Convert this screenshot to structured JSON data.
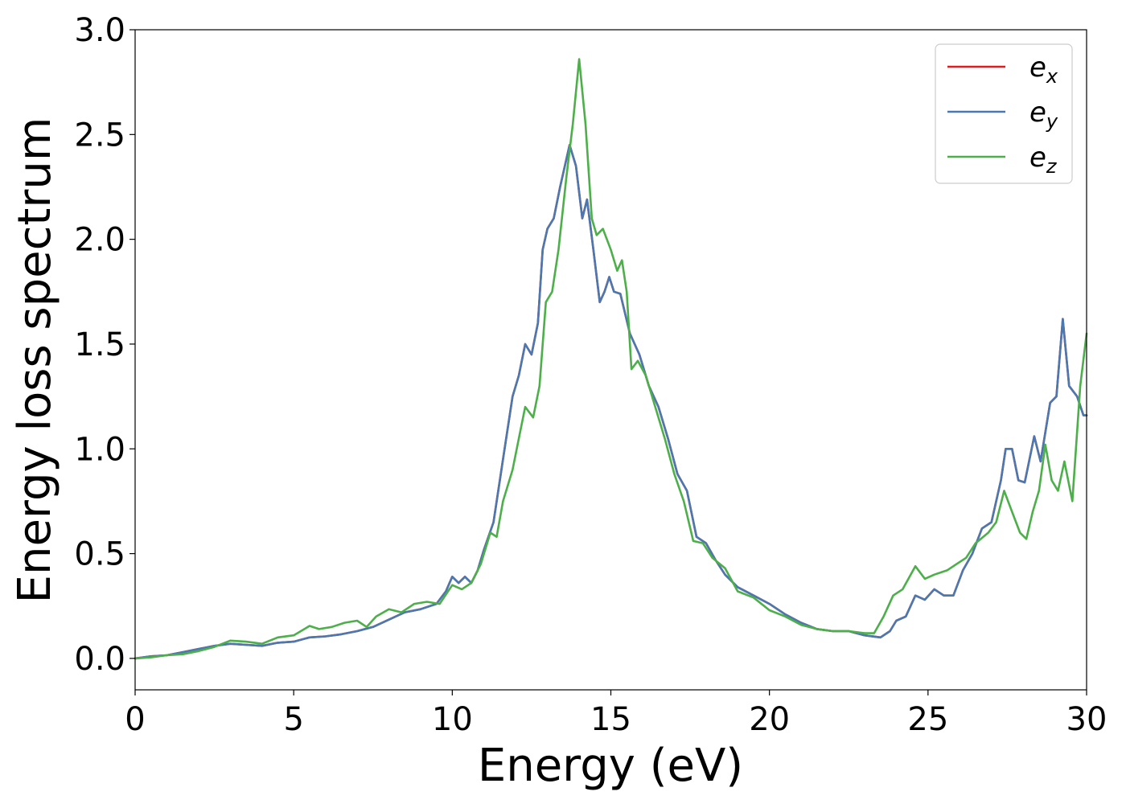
{
  "chart_data": {
    "type": "line",
    "title": "",
    "xlabel": "Energy (eV)",
    "ylabel": "Energy loss spectrum",
    "xlim": [
      0,
      30
    ],
    "ylim": [
      -0.15,
      3.0
    ],
    "xticks": [
      0,
      5,
      10,
      15,
      20,
      25,
      30
    ],
    "xtick_labels": [
      "0",
      "5",
      "10",
      "15",
      "20",
      "25",
      "30"
    ],
    "yticks": [
      0.0,
      0.5,
      1.0,
      1.5,
      2.0,
      2.5,
      3.0
    ],
    "ytick_labels": [
      "0.0",
      "0.5",
      "1.0",
      "1.5",
      "2.0",
      "2.5",
      "3.0"
    ],
    "grid": false,
    "legend_position": "top-right",
    "series": [
      {
        "name": "e_x",
        "legend_base": "e",
        "legend_sub": "x",
        "color": "#e41a1c",
        "points": [
          [
            0,
            0.0
          ],
          [
            0.5,
            0.01
          ],
          [
            1,
            0.015
          ],
          [
            1.5,
            0.03
          ],
          [
            2,
            0.045
          ],
          [
            2.5,
            0.06
          ],
          [
            3,
            0.07
          ],
          [
            3.5,
            0.065
          ],
          [
            4,
            0.06
          ],
          [
            4.5,
            0.075
          ],
          [
            5,
            0.08
          ],
          [
            5.5,
            0.1
          ],
          [
            6,
            0.105
          ],
          [
            6.5,
            0.115
          ],
          [
            7,
            0.13
          ],
          [
            7.5,
            0.15
          ],
          [
            8,
            0.185
          ],
          [
            8.5,
            0.22
          ],
          [
            9,
            0.235
          ],
          [
            9.5,
            0.26
          ],
          [
            9.8,
            0.32
          ],
          [
            10,
            0.39
          ],
          [
            10.2,
            0.36
          ],
          [
            10.4,
            0.39
          ],
          [
            10.6,
            0.36
          ],
          [
            10.8,
            0.42
          ],
          [
            11,
            0.52
          ],
          [
            11.3,
            0.65
          ],
          [
            11.6,
            0.95
          ],
          [
            11.9,
            1.25
          ],
          [
            12.1,
            1.35
          ],
          [
            12.3,
            1.5
          ],
          [
            12.5,
            1.45
          ],
          [
            12.7,
            1.6
          ],
          [
            12.85,
            1.95
          ],
          [
            13,
            2.05
          ],
          [
            13.2,
            2.1
          ],
          [
            13.4,
            2.25
          ],
          [
            13.7,
            2.45
          ],
          [
            13.9,
            2.35
          ],
          [
            14.1,
            2.1
          ],
          [
            14.25,
            2.19
          ],
          [
            14.45,
            1.95
          ],
          [
            14.65,
            1.7
          ],
          [
            14.8,
            1.75
          ],
          [
            14.95,
            1.82
          ],
          [
            15.1,
            1.75
          ],
          [
            15.3,
            1.74
          ],
          [
            15.6,
            1.55
          ],
          [
            15.9,
            1.45
          ],
          [
            16.2,
            1.3
          ],
          [
            16.5,
            1.2
          ],
          [
            16.8,
            1.05
          ],
          [
            17.1,
            0.88
          ],
          [
            17.4,
            0.8
          ],
          [
            17.7,
            0.58
          ],
          [
            18,
            0.55
          ],
          [
            18.3,
            0.47
          ],
          [
            18.6,
            0.4
          ],
          [
            19,
            0.34
          ],
          [
            19.5,
            0.3
          ],
          [
            20,
            0.26
          ],
          [
            20.5,
            0.21
          ],
          [
            21,
            0.17
          ],
          [
            21.5,
            0.14
          ],
          [
            22,
            0.13
          ],
          [
            22.5,
            0.13
          ],
          [
            23,
            0.11
          ],
          [
            23.5,
            0.1
          ],
          [
            23.8,
            0.13
          ],
          [
            24,
            0.18
          ],
          [
            24.3,
            0.2
          ],
          [
            24.6,
            0.3
          ],
          [
            24.9,
            0.28
          ],
          [
            25.2,
            0.33
          ],
          [
            25.5,
            0.3
          ],
          [
            25.8,
            0.3
          ],
          [
            26.1,
            0.42
          ],
          [
            26.4,
            0.5
          ],
          [
            26.7,
            0.62
          ],
          [
            27,
            0.65
          ],
          [
            27.3,
            0.85
          ],
          [
            27.45,
            1.0
          ],
          [
            27.65,
            1.0
          ],
          [
            27.85,
            0.85
          ],
          [
            28.05,
            0.84
          ],
          [
            28.35,
            1.06
          ],
          [
            28.55,
            0.94
          ],
          [
            28.85,
            1.22
          ],
          [
            29.05,
            1.25
          ],
          [
            29.25,
            1.62
          ],
          [
            29.45,
            1.3
          ],
          [
            29.7,
            1.25
          ],
          [
            29.9,
            1.16
          ],
          [
            30,
            1.16
          ]
        ]
      },
      {
        "name": "e_y",
        "legend_base": "e",
        "legend_sub": "y",
        "color": "#4a78b0",
        "points": [
          [
            0,
            0.0
          ],
          [
            0.5,
            0.01
          ],
          [
            1,
            0.015
          ],
          [
            1.5,
            0.03
          ],
          [
            2,
            0.045
          ],
          [
            2.5,
            0.06
          ],
          [
            3,
            0.07
          ],
          [
            3.5,
            0.065
          ],
          [
            4,
            0.06
          ],
          [
            4.5,
            0.075
          ],
          [
            5,
            0.08
          ],
          [
            5.5,
            0.1
          ],
          [
            6,
            0.105
          ],
          [
            6.5,
            0.115
          ],
          [
            7,
            0.13
          ],
          [
            7.5,
            0.15
          ],
          [
            8,
            0.185
          ],
          [
            8.5,
            0.22
          ],
          [
            9,
            0.235
          ],
          [
            9.5,
            0.26
          ],
          [
            9.8,
            0.32
          ],
          [
            10,
            0.39
          ],
          [
            10.2,
            0.36
          ],
          [
            10.4,
            0.39
          ],
          [
            10.6,
            0.36
          ],
          [
            10.8,
            0.42
          ],
          [
            11,
            0.52
          ],
          [
            11.3,
            0.65
          ],
          [
            11.6,
            0.95
          ],
          [
            11.9,
            1.25
          ],
          [
            12.1,
            1.35
          ],
          [
            12.3,
            1.5
          ],
          [
            12.5,
            1.45
          ],
          [
            12.7,
            1.6
          ],
          [
            12.85,
            1.95
          ],
          [
            13,
            2.05
          ],
          [
            13.2,
            2.1
          ],
          [
            13.4,
            2.25
          ],
          [
            13.7,
            2.45
          ],
          [
            13.9,
            2.35
          ],
          [
            14.1,
            2.1
          ],
          [
            14.25,
            2.19
          ],
          [
            14.45,
            1.95
          ],
          [
            14.65,
            1.7
          ],
          [
            14.8,
            1.75
          ],
          [
            14.95,
            1.82
          ],
          [
            15.1,
            1.75
          ],
          [
            15.3,
            1.74
          ],
          [
            15.6,
            1.55
          ],
          [
            15.9,
            1.45
          ],
          [
            16.2,
            1.3
          ],
          [
            16.5,
            1.2
          ],
          [
            16.8,
            1.05
          ],
          [
            17.1,
            0.88
          ],
          [
            17.4,
            0.8
          ],
          [
            17.7,
            0.58
          ],
          [
            18,
            0.55
          ],
          [
            18.3,
            0.47
          ],
          [
            18.6,
            0.4
          ],
          [
            19,
            0.34
          ],
          [
            19.5,
            0.3
          ],
          [
            20,
            0.26
          ],
          [
            20.5,
            0.21
          ],
          [
            21,
            0.17
          ],
          [
            21.5,
            0.14
          ],
          [
            22,
            0.13
          ],
          [
            22.5,
            0.13
          ],
          [
            23,
            0.11
          ],
          [
            23.5,
            0.1
          ],
          [
            23.8,
            0.13
          ],
          [
            24,
            0.18
          ],
          [
            24.3,
            0.2
          ],
          [
            24.6,
            0.3
          ],
          [
            24.9,
            0.28
          ],
          [
            25.2,
            0.33
          ],
          [
            25.5,
            0.3
          ],
          [
            25.8,
            0.3
          ],
          [
            26.1,
            0.42
          ],
          [
            26.4,
            0.5
          ],
          [
            26.7,
            0.62
          ],
          [
            27,
            0.65
          ],
          [
            27.3,
            0.85
          ],
          [
            27.45,
            1.0
          ],
          [
            27.65,
            1.0
          ],
          [
            27.85,
            0.85
          ],
          [
            28.05,
            0.84
          ],
          [
            28.35,
            1.06
          ],
          [
            28.55,
            0.94
          ],
          [
            28.85,
            1.22
          ],
          [
            29.05,
            1.25
          ],
          [
            29.25,
            1.62
          ],
          [
            29.45,
            1.3
          ],
          [
            29.7,
            1.25
          ],
          [
            29.9,
            1.16
          ],
          [
            30,
            1.16
          ]
        ]
      },
      {
        "name": "e_z",
        "legend_base": "e",
        "legend_sub": "z",
        "color": "#4daf4a",
        "points": [
          [
            0,
            0.0
          ],
          [
            0.5,
            0.005
          ],
          [
            1,
            0.015
          ],
          [
            1.5,
            0.02
          ],
          [
            2,
            0.035
          ],
          [
            2.5,
            0.055
          ],
          [
            3,
            0.085
          ],
          [
            3.5,
            0.08
          ],
          [
            4,
            0.07
          ],
          [
            4.5,
            0.1
          ],
          [
            5,
            0.11
          ],
          [
            5.5,
            0.155
          ],
          [
            5.8,
            0.14
          ],
          [
            6.2,
            0.15
          ],
          [
            6.6,
            0.17
          ],
          [
            7,
            0.18
          ],
          [
            7.3,
            0.15
          ],
          [
            7.6,
            0.2
          ],
          [
            8,
            0.235
          ],
          [
            8.4,
            0.22
          ],
          [
            8.8,
            0.26
          ],
          [
            9.2,
            0.27
          ],
          [
            9.6,
            0.26
          ],
          [
            10,
            0.35
          ],
          [
            10.3,
            0.33
          ],
          [
            10.6,
            0.36
          ],
          [
            10.9,
            0.45
          ],
          [
            11.2,
            0.6
          ],
          [
            11.4,
            0.58
          ],
          [
            11.6,
            0.75
          ],
          [
            11.9,
            0.9
          ],
          [
            12.1,
            1.05
          ],
          [
            12.3,
            1.2
          ],
          [
            12.55,
            1.15
          ],
          [
            12.75,
            1.3
          ],
          [
            12.95,
            1.7
          ],
          [
            13.15,
            1.75
          ],
          [
            13.35,
            1.95
          ],
          [
            13.6,
            2.3
          ],
          [
            13.8,
            2.55
          ],
          [
            14.0,
            2.86
          ],
          [
            14.2,
            2.55
          ],
          [
            14.4,
            2.1
          ],
          [
            14.55,
            2.02
          ],
          [
            14.75,
            2.05
          ],
          [
            15.0,
            1.95
          ],
          [
            15.2,
            1.85
          ],
          [
            15.35,
            1.9
          ],
          [
            15.5,
            1.75
          ],
          [
            15.65,
            1.38
          ],
          [
            15.85,
            1.42
          ],
          [
            16.1,
            1.35
          ],
          [
            16.4,
            1.2
          ],
          [
            16.7,
            1.05
          ],
          [
            17.0,
            0.88
          ],
          [
            17.3,
            0.75
          ],
          [
            17.6,
            0.56
          ],
          [
            17.9,
            0.55
          ],
          [
            18.2,
            0.48
          ],
          [
            18.6,
            0.43
          ],
          [
            19,
            0.32
          ],
          [
            19.5,
            0.29
          ],
          [
            20,
            0.23
          ],
          [
            20.5,
            0.2
          ],
          [
            21,
            0.16
          ],
          [
            21.5,
            0.14
          ],
          [
            22,
            0.13
          ],
          [
            22.5,
            0.13
          ],
          [
            23,
            0.12
          ],
          [
            23.3,
            0.12
          ],
          [
            23.6,
            0.2
          ],
          [
            23.9,
            0.3
          ],
          [
            24.2,
            0.33
          ],
          [
            24.6,
            0.44
          ],
          [
            24.9,
            0.38
          ],
          [
            25.2,
            0.4
          ],
          [
            25.6,
            0.42
          ],
          [
            25.9,
            0.45
          ],
          [
            26.2,
            0.48
          ],
          [
            26.5,
            0.55
          ],
          [
            26.9,
            0.6
          ],
          [
            27.15,
            0.65
          ],
          [
            27.4,
            0.8
          ],
          [
            27.65,
            0.7
          ],
          [
            27.9,
            0.6
          ],
          [
            28.1,
            0.57
          ],
          [
            28.3,
            0.7
          ],
          [
            28.5,
            0.8
          ],
          [
            28.7,
            1.02
          ],
          [
            28.9,
            0.85
          ],
          [
            29.1,
            0.8
          ],
          [
            29.3,
            0.94
          ],
          [
            29.55,
            0.75
          ],
          [
            29.8,
            1.3
          ],
          [
            30,
            1.55
          ]
        ]
      }
    ]
  }
}
